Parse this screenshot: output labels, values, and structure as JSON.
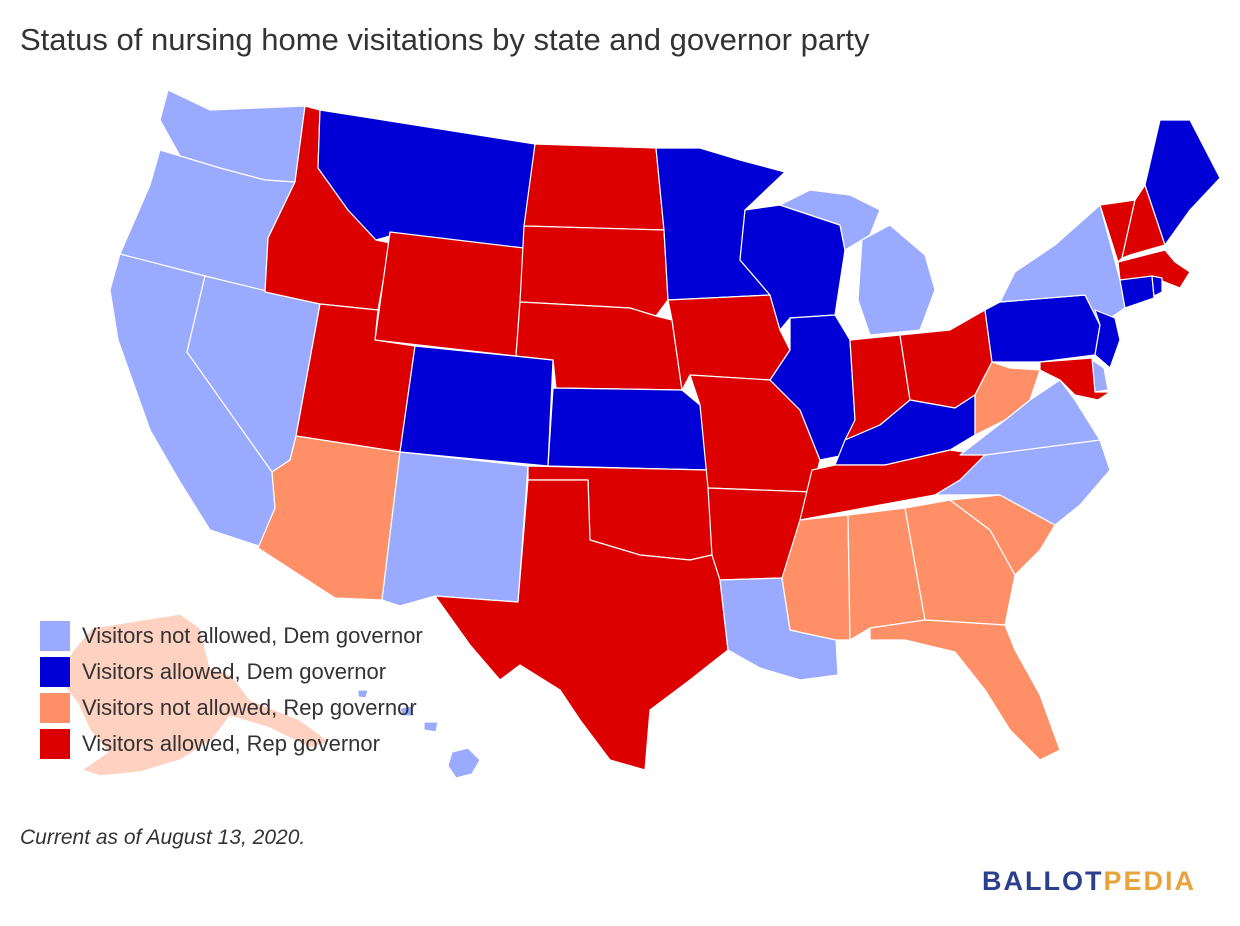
{
  "title": "Status of nursing home visitations by state and governor party",
  "legend": [
    {
      "label": "Visitors not allowed, Dem governor",
      "color": "#99aaff"
    },
    {
      "label": "Visitors allowed, Dem governor",
      "color": "#0000d6"
    },
    {
      "label": "Visitors not allowed, Rep governor",
      "color": "#ff8f66"
    },
    {
      "label": "Visitors allowed, Rep governor",
      "color": "#dd0000"
    }
  ],
  "footnote": "Current as of August 13, 2020.",
  "brand": {
    "part1": "BALLOT",
    "part2": "PEDIA",
    "color1": "#2c3f8f",
    "color2": "#e8a33d"
  },
  "states": {
    "WA": "Visitors not allowed, Dem governor",
    "OR": "Visitors not allowed, Dem governor",
    "CA": "Visitors not allowed, Dem governor",
    "NV": "Visitors not allowed, Dem governor",
    "ID": "Visitors allowed, Rep governor",
    "MT": "Visitors allowed, Dem governor",
    "WY": "Visitors allowed, Rep governor",
    "UT": "Visitors allowed, Rep governor",
    "AZ": "Visitors not allowed, Rep governor",
    "CO": "Visitors allowed, Dem governor",
    "NM": "Visitors not allowed, Dem governor",
    "ND": "Visitors allowed, Rep governor",
    "SD": "Visitors allowed, Rep governor",
    "NE": "Visitors allowed, Rep governor",
    "KS": "Visitors allowed, Dem governor",
    "OK": "Visitors allowed, Rep governor",
    "TX": "Visitors allowed, Rep governor",
    "MN": "Visitors allowed, Dem governor",
    "IA": "Visitors allowed, Rep governor",
    "MO": "Visitors allowed, Rep governor",
    "AR": "Visitors allowed, Rep governor",
    "LA": "Visitors not allowed, Dem governor",
    "WI": "Visitors allowed, Dem governor",
    "IL": "Visitors allowed, Dem governor",
    "MI": "Visitors not allowed, Dem governor",
    "IN": "Visitors allowed, Rep governor",
    "OH": "Visitors allowed, Rep governor",
    "KY": "Visitors allowed, Dem governor",
    "TN": "Visitors allowed, Rep governor",
    "MS": "Visitors not allowed, Rep governor",
    "AL": "Visitors not allowed, Rep governor",
    "GA": "Visitors not allowed, Rep governor",
    "FL": "Visitors not allowed, Rep governor",
    "SC": "Visitors not allowed, Rep governor",
    "NC": "Visitors not allowed, Dem governor",
    "VA": "Visitors not allowed, Dem governor",
    "WV": "Visitors not allowed, Rep governor",
    "PA": "Visitors allowed, Dem governor",
    "NY": "Visitors not allowed, Dem governor",
    "VT": "Visitors allowed, Rep governor",
    "NH": "Visitors allowed, Rep governor",
    "ME": "Visitors allowed, Dem governor",
    "MA": "Visitors allowed, Rep governor",
    "CT": "Visitors allowed, Dem governor",
    "RI": "Visitors allowed, Dem governor",
    "NJ": "Visitors allowed, Dem governor",
    "DE": "Visitors not allowed, Dem governor",
    "MD": "Visitors allowed, Rep governor",
    "AK": "Visitors not allowed, Rep governor",
    "HI": "Visitors not allowed, Dem governor"
  }
}
